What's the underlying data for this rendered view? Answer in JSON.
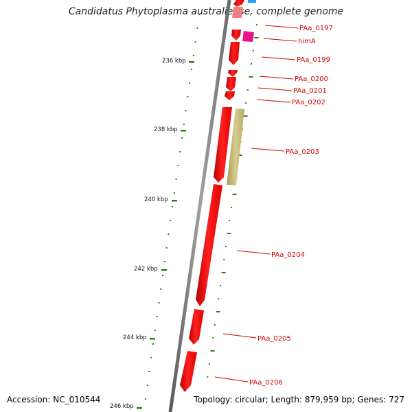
{
  "title": "Candidatus Phytoplasma australiense, complete genome",
  "footer": {
    "accession": "Accession: NC_010544",
    "summary": "Topology: circular; Length: 879,959 bp; Genes: 727"
  },
  "kbp_labels": [
    "236 kbp",
    "238 kbp",
    "240 kbp",
    "242 kbp",
    "244 kbp",
    "246 kbp"
  ],
  "gene_labels": [
    "PAa_0197",
    "himA",
    "PAa_0199",
    "PAa_0200",
    "PAa_0201",
    "PAa_0202",
    "PAa_0203",
    "PAa_0204",
    "PAa_0205",
    "PAa_0206"
  ],
  "colors": {
    "gene_forward": "#ff0000",
    "gene_hima": "#e8128c",
    "gene_blue": "#1ea7e6",
    "gene_other": "#c9bd7a",
    "backbone": "#8a8a8a",
    "tick_marks": "#2e7d1a",
    "label_text": "#d40000"
  }
}
